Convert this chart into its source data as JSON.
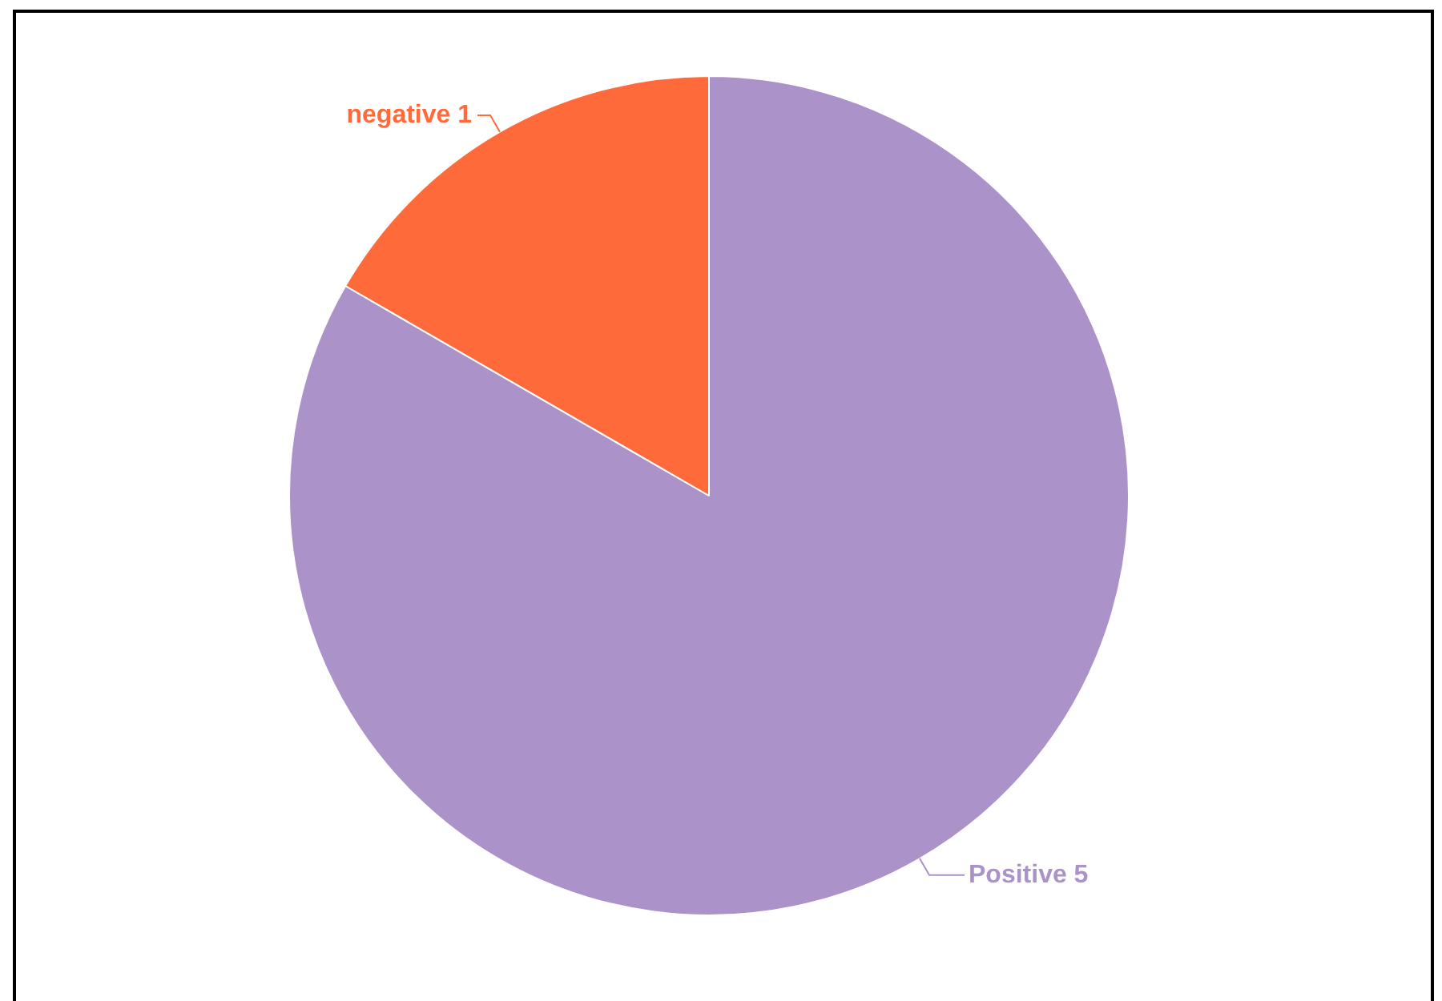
{
  "chart_data": {
    "type": "pie",
    "categories": [
      "Positive",
      "negative"
    ],
    "values": [
      5,
      1
    ],
    "colors": [
      "#ab92c8",
      "#ff6a3a"
    ],
    "data_labels": true
  }
}
